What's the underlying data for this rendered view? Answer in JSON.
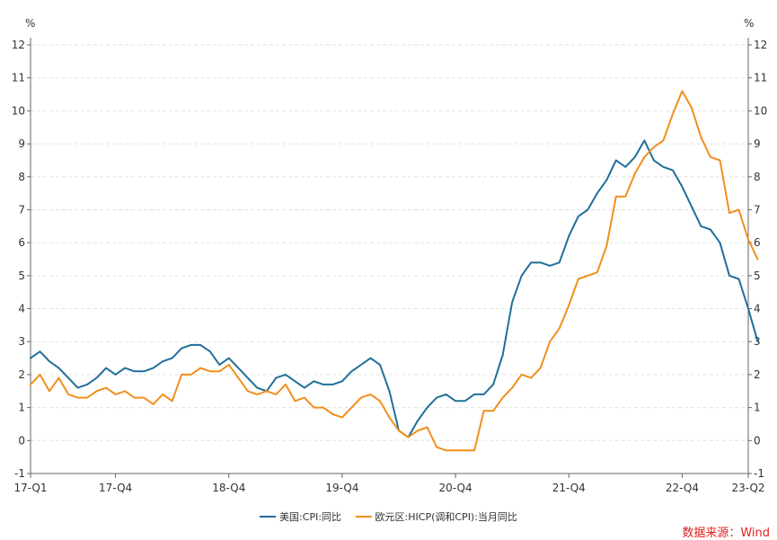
{
  "chart_data": {
    "type": "line",
    "left_axis_unit": "%",
    "right_axis_unit": "%",
    "ylim": [
      -1,
      12
    ],
    "yticks": [
      -1,
      0,
      1,
      2,
      3,
      4,
      5,
      6,
      7,
      8,
      9,
      10,
      11,
      12
    ],
    "grid": true,
    "x_range_months": [
      "2017-01",
      "2023-05"
    ],
    "x_tick_labels": [
      {
        "label": "17-Q1",
        "month": "2017-01"
      },
      {
        "label": "17-Q4",
        "month": "2017-10"
      },
      {
        "label": "18-Q4",
        "month": "2018-10"
      },
      {
        "label": "19-Q4",
        "month": "2019-10"
      },
      {
        "label": "20-Q4",
        "month": "2020-10"
      },
      {
        "label": "21-Q4",
        "month": "2021-10"
      },
      {
        "label": "22-Q4",
        "month": "2022-10"
      },
      {
        "label": "23-Q2",
        "month": "2023-05"
      }
    ],
    "series": [
      {
        "name": "美国:CPI:同比",
        "color": "#1f6f9a",
        "start_month": "2017-01",
        "values": [
          2.5,
          2.7,
          2.4,
          2.2,
          1.9,
          1.6,
          1.7,
          1.9,
          2.2,
          2.0,
          2.2,
          2.1,
          2.1,
          2.2,
          2.4,
          2.5,
          2.8,
          2.9,
          2.9,
          2.7,
          2.3,
          2.5,
          2.2,
          1.9,
          1.6,
          1.5,
          1.9,
          2.0,
          1.8,
          1.6,
          1.8,
          1.7,
          1.7,
          1.8,
          2.1,
          2.3,
          2.5,
          2.3,
          1.5,
          0.3,
          0.1,
          0.6,
          1.0,
          1.3,
          1.4,
          1.2,
          1.2,
          1.4,
          1.4,
          1.7,
          2.6,
          4.2,
          5.0,
          5.4,
          5.4,
          5.3,
          5.4,
          6.2,
          6.8,
          7.0,
          7.5,
          7.9,
          8.5,
          8.3,
          8.6,
          9.1,
          8.5,
          8.3,
          8.2,
          7.7,
          7.1,
          6.5,
          6.4,
          6.0,
          5.0,
          4.9,
          4.0,
          3.0
        ]
      },
      {
        "name": "欧元区:HICP(调和CPI):当月同比",
        "color": "#f28e1c",
        "start_month": "2017-01",
        "values": [
          1.7,
          2.0,
          1.5,
          1.9,
          1.4,
          1.3,
          1.3,
          1.5,
          1.6,
          1.4,
          1.5,
          1.3,
          1.3,
          1.1,
          1.4,
          1.2,
          2.0,
          2.0,
          2.2,
          2.1,
          2.1,
          2.3,
          1.9,
          1.5,
          1.4,
          1.5,
          1.4,
          1.7,
          1.2,
          1.3,
          1.0,
          1.0,
          0.8,
          0.7,
          1.0,
          1.3,
          1.4,
          1.2,
          0.7,
          0.3,
          0.1,
          0.3,
          0.4,
          -0.2,
          -0.3,
          -0.3,
          -0.3,
          -0.3,
          0.9,
          0.9,
          1.3,
          1.6,
          2.0,
          1.9,
          2.2,
          3.0,
          3.4,
          4.1,
          4.9,
          5.0,
          5.1,
          5.9,
          7.4,
          7.4,
          8.1,
          8.6,
          8.9,
          9.1,
          9.9,
          10.6,
          10.1,
          9.2,
          8.6,
          8.5,
          6.9,
          7.0,
          6.1,
          5.5
        ]
      }
    ],
    "legend_position": "bottom-center"
  },
  "legend": {
    "items": [
      {
        "label": "美国:CPI:同比",
        "color": "#1f6f9a"
      },
      {
        "label": "欧元区:HICP(调和CPI):当月同比",
        "color": "#f28e1c"
      }
    ]
  },
  "source_text": "数据来源：Wind"
}
